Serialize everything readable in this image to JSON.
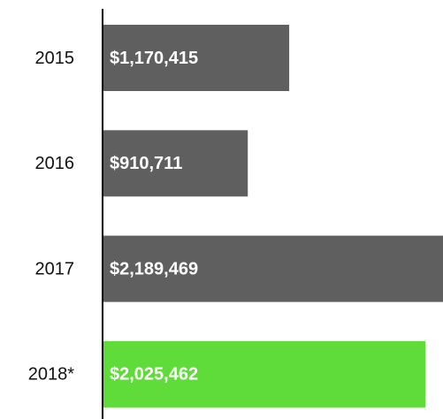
{
  "chart_data": {
    "type": "barh",
    "categories": [
      "2015",
      "2016",
      "2017",
      "2018*"
    ],
    "values": [
      1170415,
      910711,
      2189469,
      2025462
    ],
    "value_labels": [
      "$1,170,415",
      "$910,711",
      "$2,189,469",
      "$2,025,462"
    ],
    "colors": [
      "#5f5f5f",
      "#5f5f5f",
      "#5f5f5f",
      "#5fdc3a"
    ],
    "xlim": [
      0,
      2135000
    ]
  }
}
